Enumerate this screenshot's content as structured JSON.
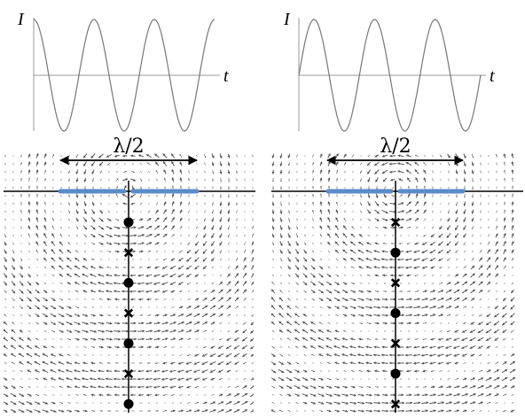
{
  "panels": [
    {
      "id": "left",
      "current_axis_label": "I",
      "time_axis_label": "t",
      "wavelength_label": "λ/2",
      "current_wave_phase": "cosine",
      "wave_cycles": 3,
      "antenna_color": "#5b8bc9",
      "axis_markers": [
        "dot",
        "cross",
        "dot",
        "cross",
        "dot",
        "cross",
        "dot"
      ]
    },
    {
      "id": "right",
      "current_axis_label": "I",
      "time_axis_label": "t",
      "wavelength_label": "λ/2",
      "current_wave_phase": "sine",
      "wave_cycles": 3,
      "antenna_color": "#5b8bc9",
      "axis_markers": [
        "cross",
        "dot",
        "cross",
        "dot",
        "cross",
        "dot",
        "cross"
      ]
    }
  ],
  "field_arrow_color": "#555555",
  "marker_color": "#000000"
}
